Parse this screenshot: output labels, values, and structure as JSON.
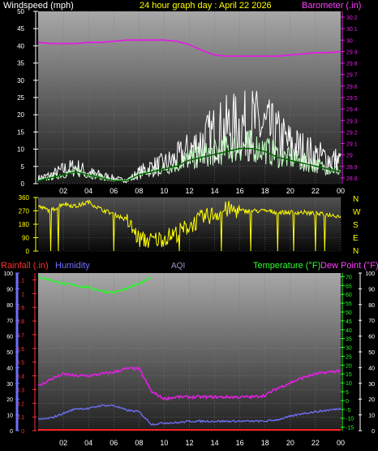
{
  "header": {
    "left": "Windspeed (mph)",
    "center": "24 hour graph day : April 22 2026",
    "right": "Barometer (.in)"
  },
  "x_ticks": [
    "02",
    "04",
    "06",
    "08",
    "10",
    "12",
    "14",
    "16",
    "18",
    "20",
    "22",
    "00"
  ],
  "dir_labels": [
    "N",
    "W",
    "S",
    "E",
    "N"
  ],
  "bottom_header": {
    "rain": "Rainfall (.in)",
    "humidity": "Humidity",
    "aqi": "AQI",
    "temp": "Temperature (°F)",
    "dew": "Dew Point (°F)"
  },
  "colors": {
    "wind_gust": "#ffffff",
    "wind_avg": "#bfffbf",
    "wind_dark": "#006600",
    "barometer": "#e020e0",
    "direction": "#ffff00",
    "rain": "#ff2020",
    "humidity": "#7070ff",
    "temperature": "#20ff20",
    "dew_point": "#e020e0",
    "aqi": "#9999cc"
  },
  "chart_data": [
    {
      "type": "line",
      "title": "24 hour graph day : April 22 2026",
      "x_ticks": [
        "02",
        "04",
        "06",
        "08",
        "10",
        "12",
        "14",
        "16",
        "18",
        "20",
        "22",
        "00"
      ],
      "left_axis": {
        "label": "Windspeed (mph)",
        "ticks": [
          0,
          5,
          10,
          15,
          20,
          25,
          30,
          35,
          40,
          45,
          50
        ],
        "ylim": [
          0,
          50
        ]
      },
      "right_axis": {
        "label": "Barometer (.in)",
        "ticks": [
          28.8,
          28.9,
          29,
          29.1,
          29.2,
          29.3,
          29.4,
          29.5,
          29.6,
          29.7,
          29.8,
          29.9,
          30,
          30.1,
          30.2
        ],
        "ylim": [
          28.75,
          30.25
        ]
      },
      "series": [
        {
          "name": "Barometer (.in)",
          "axis": "right",
          "x": [
            0,
            1,
            2,
            3,
            4,
            5,
            6,
            7,
            8,
            9,
            10,
            11,
            12,
            13,
            14,
            15,
            16,
            17,
            18,
            19,
            20,
            21,
            22,
            23,
            24
          ],
          "values": [
            29.98,
            29.97,
            29.97,
            29.97,
            29.98,
            29.98,
            29.99,
            30.0,
            30.0,
            30.0,
            30.0,
            29.99,
            29.96,
            29.91,
            29.87,
            29.86,
            29.86,
            29.86,
            29.86,
            29.86,
            29.87,
            29.88,
            29.89,
            29.89,
            29.9
          ]
        },
        {
          "name": "Wind gust",
          "x": [
            0,
            1,
            2,
            3,
            4,
            5,
            6,
            7,
            8,
            9,
            10,
            11,
            12,
            13,
            14,
            15,
            16,
            17,
            18,
            19,
            20,
            21,
            22,
            23,
            24
          ],
          "values": [
            2,
            3,
            5,
            6,
            4,
            3,
            2,
            1,
            4,
            6,
            7,
            9,
            12,
            15,
            18,
            20,
            21,
            22,
            20,
            17,
            14,
            12,
            10,
            9,
            8
          ]
        },
        {
          "name": "Wind average",
          "x": [
            0,
            1,
            2,
            3,
            4,
            5,
            6,
            7,
            8,
            9,
            10,
            11,
            12,
            13,
            14,
            15,
            16,
            17,
            18,
            19,
            20,
            21,
            22,
            23,
            24
          ],
          "values": [
            1,
            2,
            3,
            4,
            3,
            2,
            1,
            1,
            3,
            4,
            5,
            6,
            8,
            9,
            10,
            11,
            12,
            12,
            11,
            9,
            8,
            7,
            6,
            5,
            4
          ]
        }
      ]
    },
    {
      "type": "line",
      "x_ticks": [
        "02",
        "04",
        "06",
        "08",
        "10",
        "12",
        "14",
        "16",
        "18",
        "20",
        "22",
        "00"
      ],
      "left_axis": {
        "ticks": [
          0,
          90,
          180,
          270,
          360
        ],
        "ylim": [
          0,
          360
        ]
      },
      "right_axis": {
        "labels": [
          "N",
          "W",
          "S",
          "E",
          "N"
        ]
      },
      "series": [
        {
          "name": "Wind direction",
          "x": [
            0,
            1,
            2,
            3,
            4,
            5,
            6,
            7,
            8,
            9,
            10,
            11,
            12,
            13,
            14,
            15,
            16,
            17,
            18,
            19,
            20,
            21,
            22,
            23,
            24
          ],
          "values": [
            300,
            270,
            320,
            300,
            330,
            280,
            250,
            210,
            80,
            70,
            90,
            120,
            170,
            220,
            250,
            280,
            270,
            270,
            270,
            260,
            260,
            260,
            250,
            245,
            235
          ]
        }
      ]
    },
    {
      "type": "line",
      "x_ticks": [
        "02",
        "04",
        "06",
        "08",
        "10",
        "12",
        "14",
        "16",
        "18",
        "20",
        "22",
        "00"
      ],
      "axes": {
        "humidity": {
          "ticks": [
            0,
            10,
            20,
            30,
            40,
            50,
            60,
            70,
            80,
            90,
            100
          ],
          "ylim": [
            0,
            100
          ]
        },
        "rainfall": {
          "ticks": [
            0,
            0.1,
            0.2,
            0.3,
            0.4,
            0.5,
            0.6,
            0.7,
            0.8,
            0.9,
            1,
            1.1
          ],
          "ylim": [
            0,
            1.15
          ]
        },
        "temperature": {
          "ticks": [
            -15,
            -10,
            -5,
            0,
            5,
            10,
            15,
            20,
            25,
            30,
            35,
            40,
            45,
            50,
            55,
            60,
            65,
            70
          ],
          "ylim": [
            -17,
            72
          ]
        },
        "aqi": {
          "ticks": [
            0,
            10,
            20,
            30,
            40,
            50,
            60,
            70,
            80,
            90,
            100
          ],
          "ylim": [
            0,
            100
          ]
        }
      },
      "series": [
        {
          "name": "Temperature (°F)",
          "axis": "temperature",
          "x": [
            0,
            1,
            2,
            3,
            4,
            5,
            6,
            7,
            8,
            9
          ],
          "values": [
            70,
            68,
            66,
            65,
            64,
            62,
            61,
            63,
            66,
            70
          ]
        },
        {
          "name": "Dew Point (°F)",
          "axis": "temperature",
          "x": [
            0,
            1,
            2,
            3,
            4,
            5,
            6,
            7,
            8,
            9,
            10,
            11,
            12,
            13,
            14,
            15,
            16,
            17,
            18,
            19,
            20,
            21,
            22,
            23,
            24
          ],
          "values": [
            8,
            12,
            15,
            14,
            14,
            15,
            16,
            18,
            18,
            5,
            1,
            2,
            2,
            2,
            2,
            2,
            2,
            2,
            3,
            7,
            10,
            13,
            15,
            16,
            17
          ]
        },
        {
          "name": "Humidity",
          "axis": "humidity",
          "x": [
            0,
            1,
            2,
            3,
            4,
            5,
            6,
            7,
            8,
            9,
            10,
            11,
            12,
            13,
            14,
            15,
            16,
            17,
            18,
            19,
            20,
            21,
            22,
            23,
            24
          ],
          "values": [
            7,
            8,
            11,
            14,
            14,
            16,
            16,
            13,
            12,
            4,
            5,
            5,
            6,
            6,
            6,
            6,
            6,
            6,
            6,
            7,
            9,
            11,
            12,
            13,
            14
          ]
        },
        {
          "name": "Rainfall (.in)",
          "axis": "rainfall",
          "x": [
            0,
            24
          ],
          "values": [
            0,
            0
          ]
        }
      ]
    }
  ]
}
